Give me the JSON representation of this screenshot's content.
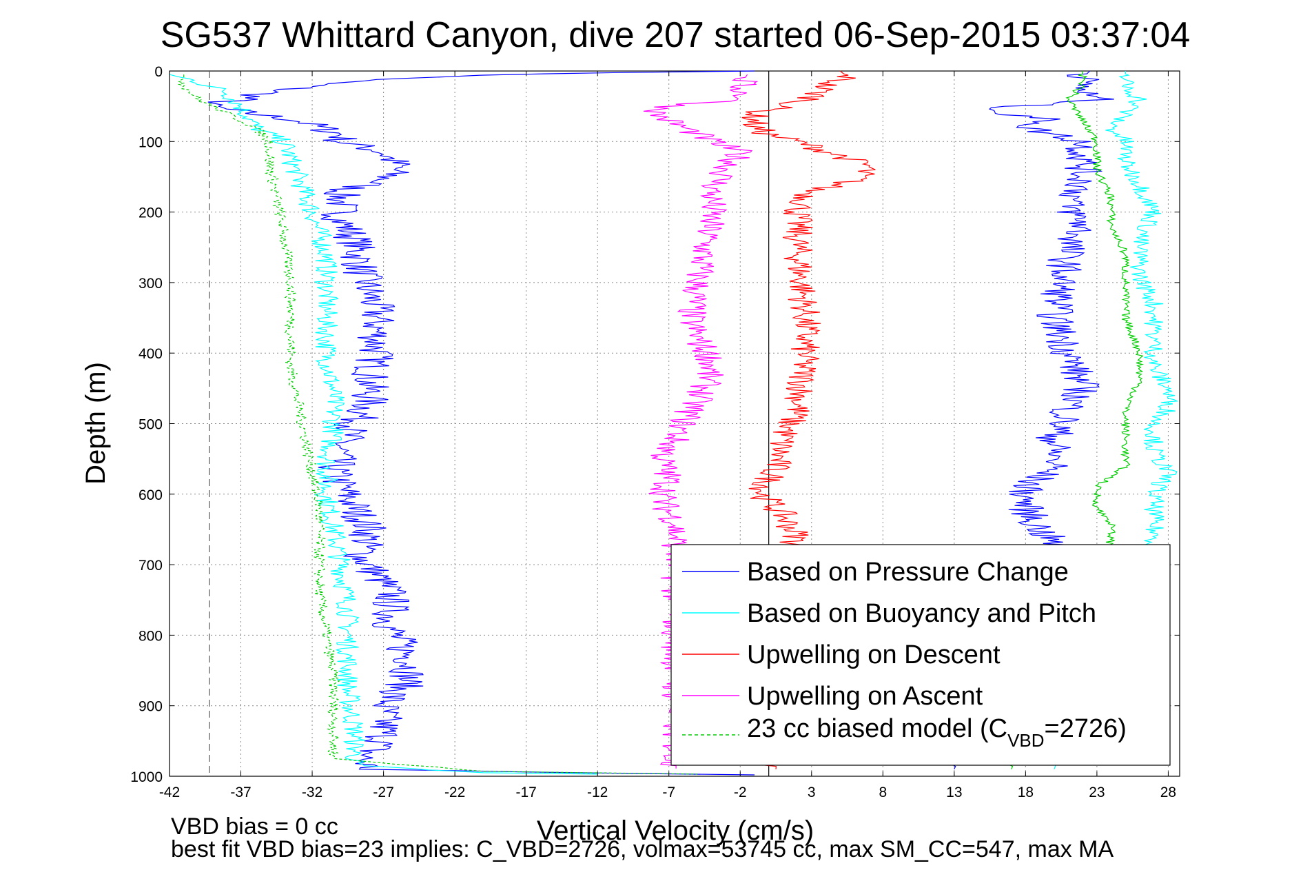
{
  "chart_data": {
    "type": "line",
    "title": "SG537 Whittard Canyon, dive 207 started 06-Sep-2015 03:37:04",
    "xlabel": "Vertical Velocity (cm/s)",
    "ylabel": "Depth (m)",
    "xlim": [
      -42,
      28.8
    ],
    "ylim": [
      1000,
      0
    ],
    "y_reversed": true,
    "grid": true,
    "legend_placement": "lower-right",
    "x_ticks": [
      "-42",
      "-37",
      "-32",
      "-27",
      "-22",
      "-17",
      "-12",
      "-7",
      "-2",
      "3",
      "8",
      "13",
      "18",
      "23",
      "28"
    ],
    "y_ticks": [
      "0",
      "100",
      "200",
      "300",
      "400",
      "500",
      "600",
      "700",
      "800",
      "900",
      "1000"
    ],
    "reference_lines": [
      {
        "x": 0,
        "style": "solid",
        "color": "#000000"
      },
      {
        "x": -39.2,
        "style": "dashed",
        "color": "#555555"
      }
    ],
    "legend": {
      "entries": [
        "Based on Pressure Change",
        "Based on Buoyancy and Pitch",
        "Upwelling on Descent",
        "Upwelling on Ascent"
      ],
      "model_entry": {
        "prefix": "23 cc biased model (C",
        "sub": "VBD",
        "suffix": "=2726)"
      }
    },
    "series": [
      {
        "name": "Based on Pressure Change",
        "color": "#0000ff",
        "style": "solid",
        "noise": 1.4,
        "points": [
          [
            -1,
            0
          ],
          [
            -14,
            3
          ],
          [
            -23,
            8
          ],
          [
            -30,
            15
          ],
          [
            -35,
            30
          ],
          [
            -37,
            40
          ],
          [
            -39.5,
            48
          ],
          [
            -38,
            55
          ],
          [
            -33,
            70
          ],
          [
            -30,
            90
          ],
          [
            -30,
            100
          ],
          [
            -27,
            115
          ],
          [
            -26,
            135
          ],
          [
            -27,
            155
          ],
          [
            -30,
            170
          ],
          [
            -30,
            190
          ],
          [
            -30,
            210
          ],
          [
            -29,
            240
          ],
          [
            -28.5,
            290
          ],
          [
            -27.5,
            340
          ],
          [
            -27.5,
            400
          ],
          [
            -28,
            440
          ],
          [
            -28,
            470
          ],
          [
            -29,
            500
          ],
          [
            -30,
            530
          ],
          [
            -30.5,
            570
          ],
          [
            -29,
            620
          ],
          [
            -28,
            650
          ],
          [
            -28.5,
            690
          ],
          [
            -26.5,
            740
          ],
          [
            -26.5,
            790
          ],
          [
            -25,
            840
          ],
          [
            -25.5,
            870
          ],
          [
            -27,
            900
          ],
          [
            -27,
            950
          ],
          [
            -28.5,
            975
          ],
          [
            -28,
            990
          ],
          [
            -14,
            995
          ],
          [
            -1,
            998
          ]
        ]
      },
      {
        "name": "Based on Buoyancy and Pitch",
        "color": "#00ffff",
        "style": "solid",
        "noise": 0.8,
        "points": [
          [
            -42,
            5
          ],
          [
            -40,
            15
          ],
          [
            -38,
            30
          ],
          [
            -37,
            50
          ],
          [
            -36,
            80
          ],
          [
            -34,
            100
          ],
          [
            -33,
            150
          ],
          [
            -32,
            200
          ],
          [
            -31,
            260
          ],
          [
            -31,
            330
          ],
          [
            -31,
            400
          ],
          [
            -30.5,
            460
          ],
          [
            -30.5,
            510
          ],
          [
            -31,
            560
          ],
          [
            -31,
            600
          ],
          [
            -30.5,
            650
          ],
          [
            -30,
            700
          ],
          [
            -29.5,
            760
          ],
          [
            -29.5,
            820
          ],
          [
            -29.5,
            880
          ],
          [
            -29,
            940
          ],
          [
            -29,
            985
          ],
          [
            -20,
            995
          ],
          [
            -8,
            998
          ]
        ]
      },
      {
        "name": "Upwelling on Descent",
        "color": "#ff0000",
        "style": "solid",
        "noise": 1.1,
        "points": [
          [
            5,
            0
          ],
          [
            5.5,
            8
          ],
          [
            4,
            20
          ],
          [
            3,
            40
          ],
          [
            1,
            50
          ],
          [
            -1,
            60
          ],
          [
            -1,
            80
          ],
          [
            0,
            90
          ],
          [
            2,
            100
          ],
          [
            5,
            120
          ],
          [
            7,
            135
          ],
          [
            6,
            155
          ],
          [
            3,
            170
          ],
          [
            2,
            200
          ],
          [
            2,
            250
          ],
          [
            2.3,
            300
          ],
          [
            2.6,
            350
          ],
          [
            2.5,
            400
          ],
          [
            2.3,
            450
          ],
          [
            2,
            480
          ],
          [
            1,
            520
          ],
          [
            0.5,
            560
          ],
          [
            -0.5,
            600
          ],
          [
            1,
            630
          ],
          [
            2,
            660
          ],
          [
            1.5,
            690
          ],
          [
            0.5,
            990
          ]
        ]
      },
      {
        "name": "Upwelling on Ascent",
        "color": "#ff00ff",
        "style": "solid",
        "noise": 1.1,
        "points": [
          [
            -1.5,
            5
          ],
          [
            -2,
            20
          ],
          [
            -1.8,
            40
          ],
          [
            -7,
            50
          ],
          [
            -8,
            60
          ],
          [
            -6,
            80
          ],
          [
            -4,
            100
          ],
          [
            -2,
            115
          ],
          [
            -3,
            140
          ],
          [
            -4,
            170
          ],
          [
            -4,
            200
          ],
          [
            -4.5,
            250
          ],
          [
            -5,
            300
          ],
          [
            -5.5,
            350
          ],
          [
            -5,
            380
          ],
          [
            -4,
            410
          ],
          [
            -4.5,
            450
          ],
          [
            -5.5,
            480
          ],
          [
            -6.5,
            520
          ],
          [
            -7.5,
            550
          ],
          [
            -7,
            580
          ],
          [
            -7.5,
            610
          ],
          [
            -6.5,
            640
          ],
          [
            -6.5,
            670
          ],
          [
            -6.5,
            990
          ]
        ]
      },
      {
        "name": "23 cc biased model (C_VBD=2726)",
        "color": "#00cc00",
        "style": "dashed",
        "noise": 0.4,
        "points": [
          [
            -41,
            5
          ],
          [
            -41,
            20
          ],
          [
            -40,
            40
          ],
          [
            -38,
            60
          ],
          [
            -36,
            80
          ],
          [
            -35,
            100
          ],
          [
            -35,
            130
          ],
          [
            -34.5,
            180
          ],
          [
            -34,
            230
          ],
          [
            -33.5,
            300
          ],
          [
            -33.5,
            350
          ],
          [
            -33.5,
            420
          ],
          [
            -33,
            470
          ],
          [
            -32.5,
            520
          ],
          [
            -32,
            570
          ],
          [
            -31.5,
            620
          ],
          [
            -31.5,
            680
          ],
          [
            -31.5,
            740
          ],
          [
            -31,
            800
          ],
          [
            -30.5,
            860
          ],
          [
            -30.5,
            920
          ],
          [
            -30.5,
            975
          ],
          [
            -20,
            993
          ],
          [
            -5,
            997
          ]
        ]
      }
    ],
    "right_panel_series": [
      {
        "name": "Based on Pressure Change (right panel)",
        "color": "#0000ff",
        "noise": 1.3,
        "points": [
          [
            22.5,
            0
          ],
          [
            22,
            10
          ],
          [
            22,
            30
          ],
          [
            23,
            40
          ],
          [
            21,
            45
          ],
          [
            17,
            50
          ],
          [
            16,
            60
          ],
          [
            20,
            70
          ],
          [
            18,
            80
          ],
          [
            22,
            100
          ],
          [
            22,
            130
          ],
          [
            22,
            160
          ],
          [
            21,
            190
          ],
          [
            22,
            220
          ],
          [
            21,
            250
          ],
          [
            20.5,
            300
          ],
          [
            20,
            350
          ],
          [
            21,
            400
          ],
          [
            22,
            450
          ],
          [
            21,
            480
          ],
          [
            20,
            520
          ],
          [
            20,
            560
          ],
          [
            18,
            590
          ],
          [
            18,
            620
          ],
          [
            19,
            650
          ],
          [
            20,
            670
          ],
          [
            13,
            990
          ]
        ]
      },
      {
        "name": "Based on Buoyancy and Pitch (right panel)",
        "color": "#00ffff",
        "noise": 0.7,
        "points": [
          [
            25,
            0
          ],
          [
            25,
            20
          ],
          [
            26,
            40
          ],
          [
            25,
            60
          ],
          [
            24,
            80
          ],
          [
            25,
            100
          ],
          [
            25,
            130
          ],
          [
            26,
            160
          ],
          [
            27,
            200
          ],
          [
            26,
            240
          ],
          [
            26,
            290
          ],
          [
            27,
            330
          ],
          [
            27,
            380
          ],
          [
            27,
            420
          ],
          [
            28,
            450
          ],
          [
            28,
            480
          ],
          [
            27,
            500
          ],
          [
            27,
            540
          ],
          [
            28,
            570
          ],
          [
            27,
            600
          ],
          [
            27,
            640
          ],
          [
            27,
            665
          ],
          [
            20,
            990
          ]
        ]
      },
      {
        "name": "23 cc biased model (right panel)",
        "color": "#00cc00",
        "noise": 0.3,
        "points": [
          [
            22,
            0
          ],
          [
            22,
            20
          ],
          [
            21,
            40
          ],
          [
            22,
            70
          ],
          [
            23,
            100
          ],
          [
            23,
            140
          ],
          [
            24,
            180
          ],
          [
            24,
            220
          ],
          [
            25,
            260
          ],
          [
            25,
            300
          ],
          [
            25,
            350
          ],
          [
            26,
            400
          ],
          [
            26,
            440
          ],
          [
            25,
            480
          ],
          [
            25,
            520
          ],
          [
            25,
            560
          ],
          [
            23,
            590
          ],
          [
            23,
            620
          ],
          [
            24,
            640
          ],
          [
            24,
            665
          ],
          [
            17,
            990
          ]
        ]
      }
    ],
    "footer_lines": [
      "VBD bias = 0 cc",
      "best fit VBD bias=23 implies: C_VBD=2726, volmax=53745 cc, max SM_CC=547, max MA"
    ]
  }
}
